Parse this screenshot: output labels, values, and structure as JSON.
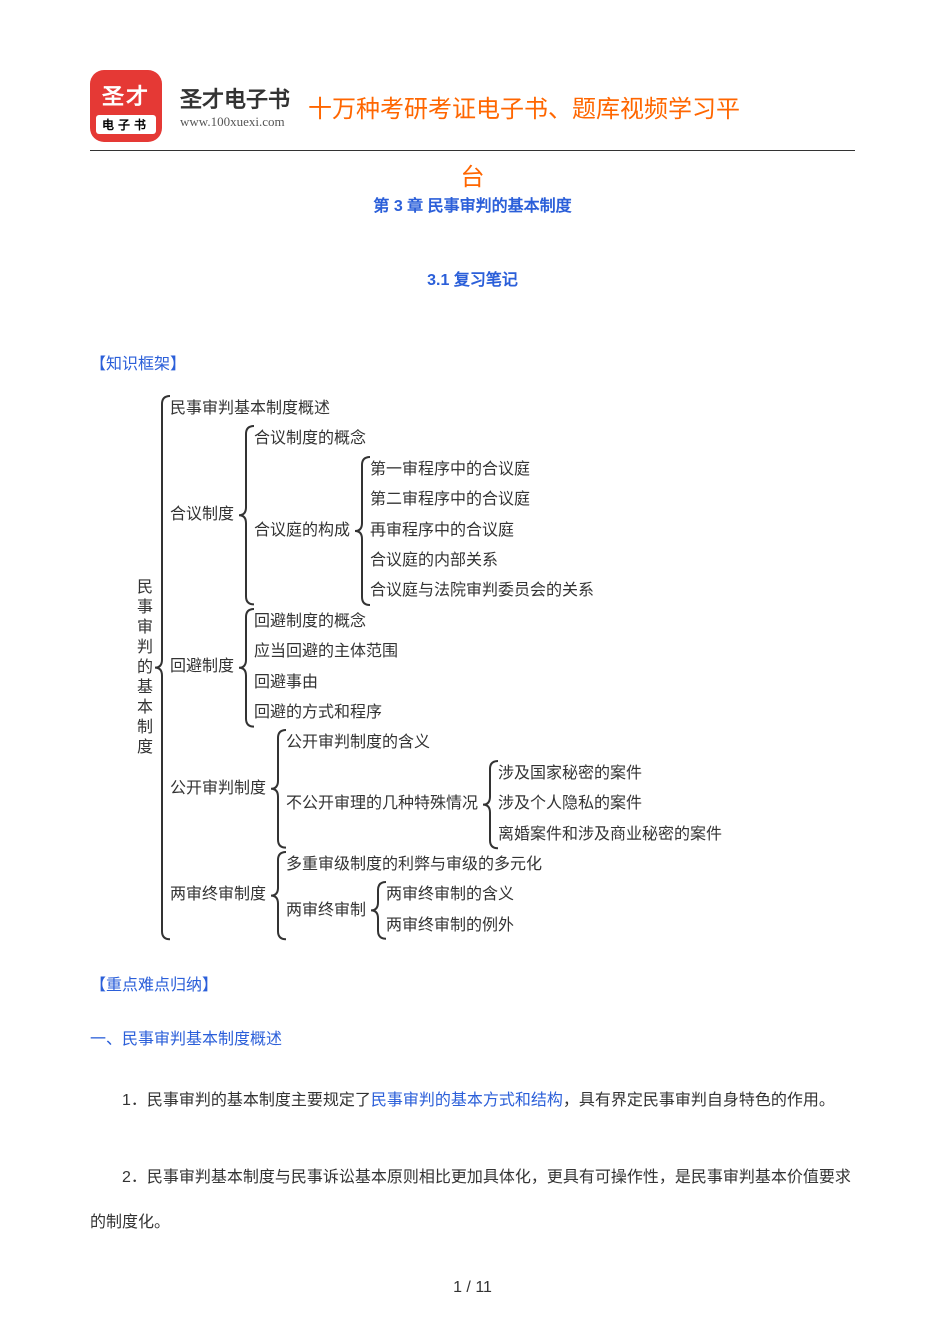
{
  "colors": {
    "red": "#e53935",
    "orange": "#ff6600",
    "blue": "#2b5fd9",
    "text": "#333333",
    "bracket": "#333333"
  },
  "header": {
    "logo_top": "圣才",
    "logo_bottom": "电子书",
    "logo_bg": "#e53935",
    "brand_name": "圣才电子书",
    "brand_url": "www.100xuexi.com",
    "banner_main": "十万种考研考证电子书、题库视频学习平",
    "banner_tail": "台"
  },
  "chapter_title": "第 3 章 民事审判的基本制度",
  "section_title": "3.1 复习笔记",
  "framework_label": "【知识框架】",
  "tree": {
    "root_label": "民事审判的基本制度",
    "bracket_stroke": "#333333",
    "bracket_width": 2,
    "font_size": 16,
    "line_height": 1.9,
    "children": [
      {
        "label": "民事审判基本制度概述"
      },
      {
        "label": "合议制度",
        "children": [
          {
            "label": "合议制度的概念"
          },
          {
            "label": "合议庭的构成",
            "children": [
              {
                "label": "第一审程序中的合议庭"
              },
              {
                "label": "第二审程序中的合议庭"
              },
              {
                "label": "再审程序中的合议庭"
              },
              {
                "label": "合议庭的内部关系"
              },
              {
                "label": "合议庭与法院审判委员会的关系"
              }
            ]
          }
        ]
      },
      {
        "label": "回避制度",
        "children": [
          {
            "label": "回避制度的概念"
          },
          {
            "label": "应当回避的主体范围"
          },
          {
            "label": "回避事由"
          },
          {
            "label": "回避的方式和程序"
          }
        ]
      },
      {
        "label": "公开审判制度",
        "children": [
          {
            "label": "公开审判制度的含义"
          },
          {
            "label": "不公开审理的几种特殊情况",
            "children": [
              {
                "label": "涉及国家秘密的案件"
              },
              {
                "label": "涉及个人隐私的案件"
              },
              {
                "label": "离婚案件和涉及商业秘密的案件"
              }
            ]
          }
        ]
      },
      {
        "label": "两审终审制度",
        "children": [
          {
            "label": "多重审级制度的利弊与审级的多元化"
          },
          {
            "label": "两审终审制",
            "children": [
              {
                "label": "两审终审制的含义"
              },
              {
                "label": "两审终审制的例外"
              }
            ]
          }
        ]
      }
    ]
  },
  "keypoints_label": "【重点难点归纳】",
  "heading1": "一、民事审判基本制度概述",
  "para1_pre": "1．民事审判的基本制度主要规定了",
  "para1_accent": "民事审判的基本方式和结构",
  "para1_post": "，具有界定民事审判自身特色的作用。",
  "para2": "2．民事审判基本制度与民事诉讼基本原则相比更加具体化，更具有可操作性，是民事审判基本价值要求的制度化。",
  "footer": "1 / 11"
}
